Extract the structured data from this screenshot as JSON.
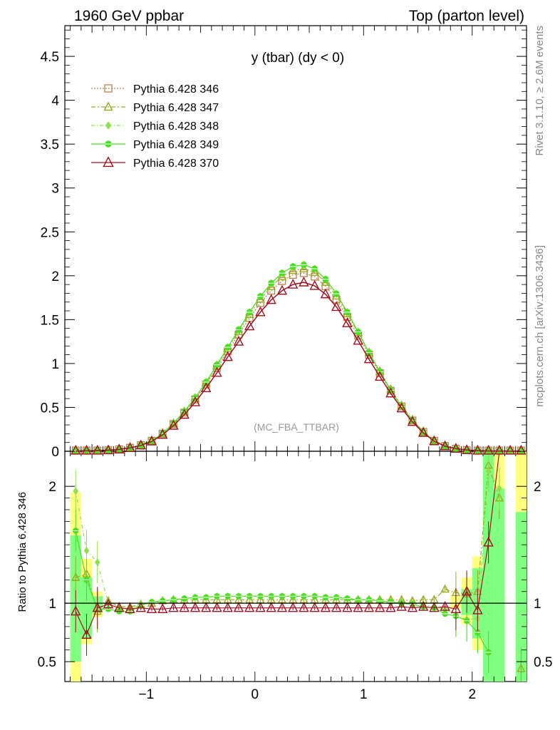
{
  "header": {
    "left": "1960 GeV ppbar",
    "right": "Top (parton level)"
  },
  "side_labels": {
    "rivet": "Rivet 3.1.10, ≥ 2.6M events",
    "mcplots": "mcplots.cern.ch [arXiv:1306.3436]"
  },
  "chart_data": {
    "type": "line",
    "title": "y (tbar) (dy < 0)",
    "watermark": "(MC_FBA_TTBAR)",
    "xlim": [
      -1.75,
      2.5
    ],
    "main_ylim": [
      0,
      4.85
    ],
    "ratio_ylim": [
      0.33,
      2.3
    ],
    "ratio_ylabel": "Ratio to Pythia 6.428 346",
    "x_ticks": [
      -1,
      0,
      1,
      2
    ],
    "x_tick_labels": [
      "−1",
      "0",
      "1",
      "2"
    ],
    "main_y_ticks": [
      0,
      0.5,
      1,
      1.5,
      2,
      2.5,
      3,
      3.5,
      4,
      4.5
    ],
    "main_y_tick_labels": [
      "0",
      "0.5",
      "1",
      "1.5",
      "2",
      "2.5",
      "3",
      "3.5",
      "4",
      "4.5"
    ],
    "ratio_y_ticks": [
      0.5,
      1,
      2
    ],
    "ratio_y_tick_labels": [
      "0.5",
      "1",
      "2"
    ],
    "legend_position": "top-left",
    "bin_width": 0.1,
    "x": [
      -1.65,
      -1.55,
      -1.45,
      -1.35,
      -1.25,
      -1.15,
      -1.05,
      -0.95,
      -0.85,
      -0.75,
      -0.65,
      -0.55,
      -0.45,
      -0.35,
      -0.25,
      -0.15,
      -0.05,
      0.05,
      0.15,
      0.25,
      0.35,
      0.45,
      0.55,
      0.65,
      0.75,
      0.85,
      0.95,
      1.05,
      1.15,
      1.25,
      1.35,
      1.45,
      1.55,
      1.65,
      1.75,
      1.85,
      1.95,
      2.05,
      2.15,
      2.25,
      2.35,
      2.45
    ],
    "series": [
      {
        "name": "Pythia 6.428 346",
        "color": "#b5824a",
        "marker": "square",
        "dash": "2,2",
        "values": [
          0.003,
          0.006,
          0.008,
          0.012,
          0.022,
          0.04,
          0.07,
          0.12,
          0.2,
          0.31,
          0.44,
          0.59,
          0.76,
          0.95,
          1.14,
          1.33,
          1.52,
          1.69,
          1.83,
          1.94,
          2.01,
          2.03,
          1.99,
          1.88,
          1.73,
          1.53,
          1.32,
          1.1,
          0.89,
          0.69,
          0.51,
          0.35,
          0.22,
          0.12,
          0.06,
          0.03,
          0.013,
          0.006,
          0.003,
          0.002,
          0.001,
          0.0005
        ]
      },
      {
        "name": "Pythia 6.428 347",
        "color": "#9aaa1e",
        "marker": "triangle",
        "dash": "6,3,2,3",
        "values": [
          0.0035,
          0.0065,
          0.009,
          0.013,
          0.023,
          0.041,
          0.072,
          0.123,
          0.205,
          0.318,
          0.452,
          0.605,
          0.78,
          0.975,
          1.17,
          1.365,
          1.56,
          1.735,
          1.878,
          1.99,
          2.062,
          2.08,
          2.04,
          1.927,
          1.77,
          1.568,
          1.352,
          1.125,
          0.91,
          0.705,
          0.52,
          0.357,
          0.225,
          0.123,
          0.062,
          0.031,
          0.014,
          0.007,
          0.004,
          0.003,
          0.002,
          0.001
        ]
      },
      {
        "name": "Pythia 6.428 348",
        "color": "#8fe04a",
        "marker": "diamond",
        "dash": "5,3,1,3",
        "values": [
          0.004,
          0.007,
          0.009,
          0.012,
          0.022,
          0.04,
          0.071,
          0.121,
          0.203,
          0.318,
          0.454,
          0.61,
          0.788,
          0.985,
          1.185,
          1.385,
          1.585,
          1.765,
          1.915,
          2.03,
          2.105,
          2.125,
          2.08,
          1.96,
          1.795,
          1.585,
          1.36,
          1.125,
          0.905,
          0.695,
          0.51,
          0.35,
          0.22,
          0.12,
          0.06,
          0.03,
          0.013,
          0.006,
          0.003,
          0.002,
          0.001,
          0.0005
        ]
      },
      {
        "name": "Pythia 6.428 349",
        "color": "#48e020",
        "marker": "circle",
        "dash": "",
        "values": [
          0.0035,
          0.0065,
          0.008,
          0.012,
          0.022,
          0.04,
          0.071,
          0.121,
          0.203,
          0.318,
          0.454,
          0.61,
          0.788,
          0.985,
          1.185,
          1.385,
          1.585,
          1.765,
          1.915,
          2.03,
          2.105,
          2.125,
          2.08,
          1.96,
          1.795,
          1.585,
          1.36,
          1.125,
          0.905,
          0.695,
          0.51,
          0.35,
          0.22,
          0.12,
          0.06,
          0.03,
          0.013,
          0.005,
          0.002,
          0.001,
          0.0005,
          0.0002
        ]
      },
      {
        "name": "Pythia 6.428 370",
        "color": "#a01020",
        "marker": "triangle-open",
        "dash": "",
        "values": [
          0.003,
          0.005,
          0.008,
          0.012,
          0.021,
          0.038,
          0.067,
          0.113,
          0.188,
          0.292,
          0.417,
          0.56,
          0.72,
          0.895,
          1.075,
          1.25,
          1.425,
          1.585,
          1.725,
          1.83,
          1.9,
          1.925,
          1.885,
          1.79,
          1.645,
          1.46,
          1.26,
          1.05,
          0.85,
          0.66,
          0.49,
          0.335,
          0.21,
          0.115,
          0.058,
          0.03,
          0.014,
          0.007,
          0.004,
          0.003,
          0.002,
          0.001
        ]
      }
    ],
    "ratios": [
      {
        "name": "Pythia 6.428 346",
        "values": [
          1,
          1,
          1,
          1,
          1,
          1,
          1,
          1,
          1,
          1,
          1,
          1,
          1,
          1,
          1,
          1,
          1,
          1,
          1,
          1,
          1,
          1,
          1,
          1,
          1,
          1,
          1,
          1,
          1,
          1,
          1,
          1,
          1,
          1,
          1,
          1,
          1,
          1,
          1,
          1,
          1,
          1
        ]
      },
      {
        "name": "Pythia 6.428 347",
        "values": [
          1.22,
          1.25,
          0.93,
          1.02,
          0.97,
          0.97,
          0.99,
          1.0,
          1.02,
          1.03,
          1.03,
          1.03,
          1.03,
          1.03,
          1.03,
          1.03,
          1.03,
          1.03,
          1.03,
          1.03,
          1.03,
          1.03,
          1.03,
          1.03,
          1.03,
          1.03,
          1.03,
          1.03,
          1.03,
          1.03,
          1.03,
          1.02,
          1.03,
          1.03,
          1.12,
          1.09,
          1.08,
          1.1,
          2.18,
          1.9,
          null,
          0.44
        ]
      },
      {
        "name": "Pythia 6.428 348",
        "values": [
          1.96,
          1.45,
          1.35,
          1.0,
          0.97,
          0.95,
          0.99,
          1.01,
          1.02,
          1.03,
          1.04,
          1.05,
          1.05,
          1.06,
          1.06,
          1.06,
          1.06,
          1.06,
          1.06,
          1.06,
          1.06,
          1.06,
          1.06,
          1.05,
          1.05,
          1.04,
          1.03,
          1.03,
          1.02,
          1.01,
          1.0,
          1.0,
          0.99,
          0.97,
          0.95,
          0.9,
          0.86,
          0.87,
          2.13,
          1.98,
          null,
          null
        ]
      },
      {
        "name": "Pythia 6.428 349",
        "values": [
          1.62,
          1.2,
          0.95,
          0.95,
          0.93,
          0.93,
          0.98,
          1.01,
          1.02,
          1.03,
          1.04,
          1.05,
          1.05,
          1.06,
          1.06,
          1.06,
          1.06,
          1.06,
          1.06,
          1.06,
          1.06,
          1.06,
          1.06,
          1.05,
          1.05,
          1.04,
          1.03,
          1.03,
          1.02,
          1.01,
          1.0,
          0.99,
          0.97,
          0.96,
          0.91,
          0.89,
          0.85,
          0.75,
          0.58,
          null,
          null,
          null
        ]
      },
      {
        "name": "Pythia 6.428 370",
        "values": [
          0.93,
          0.73,
          0.96,
          0.99,
          0.96,
          0.95,
          0.96,
          0.95,
          0.95,
          0.96,
          0.96,
          0.96,
          0.96,
          0.96,
          0.96,
          0.96,
          0.96,
          0.96,
          0.96,
          0.96,
          0.96,
          0.96,
          0.96,
          0.96,
          0.96,
          0.96,
          0.96,
          0.96,
          0.96,
          0.96,
          0.97,
          0.96,
          0.97,
          0.96,
          0.97,
          0.95,
          1.1,
          0.94,
          1.52,
          2.4,
          null,
          null
        ]
      }
    ]
  }
}
